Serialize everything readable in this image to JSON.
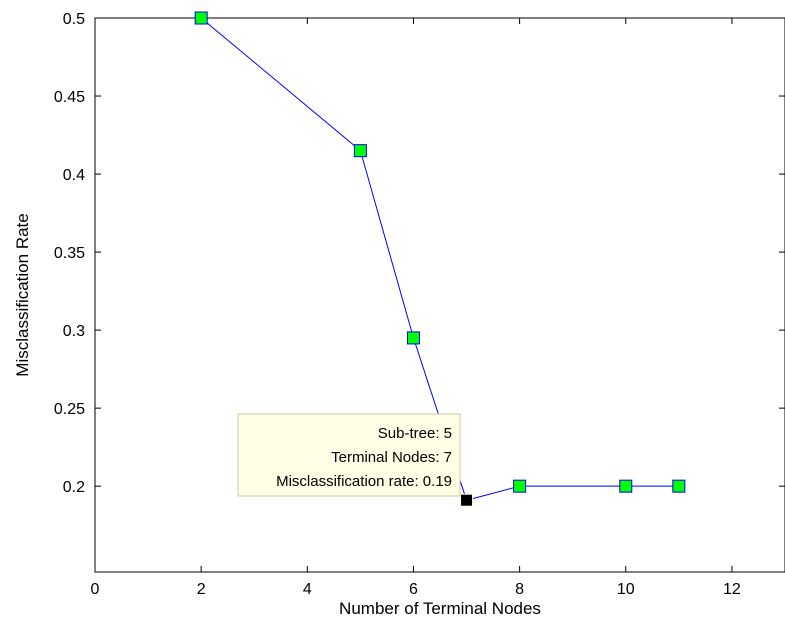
{
  "chart_data": {
    "type": "line",
    "title": "",
    "xlabel": "Number of Terminal Nodes",
    "ylabel": "Misclassification Rate",
    "xlim": [
      0,
      13
    ],
    "ylim": [
      0.145,
      0.5
    ],
    "x_ticks": [
      "0",
      "2",
      "4",
      "6",
      "8",
      "10",
      "12"
    ],
    "y_ticks": [
      "0.2",
      "0.25",
      "0.3",
      "0.35",
      "0.4",
      "0.45",
      "0.5"
    ],
    "grid": false,
    "series": [
      {
        "x": [
          2,
          5,
          6,
          7,
          8,
          10,
          11
        ],
        "y": [
          0.5,
          0.415,
          0.295,
          0.191,
          0.2,
          0.2,
          0.2
        ]
      }
    ],
    "highlighted_point": {
      "x": 7,
      "y": 0.191
    },
    "annotation": {
      "lines": [
        "Sub-tree: 5",
        "Terminal Nodes: 7",
        "Misclassification rate: 0.19"
      ]
    },
    "colors": {
      "line": "#0000ff",
      "marker_fill": "#00ff00",
      "highlight_fill": "#000000",
      "tooltip_bg": "#ffffe6"
    }
  }
}
